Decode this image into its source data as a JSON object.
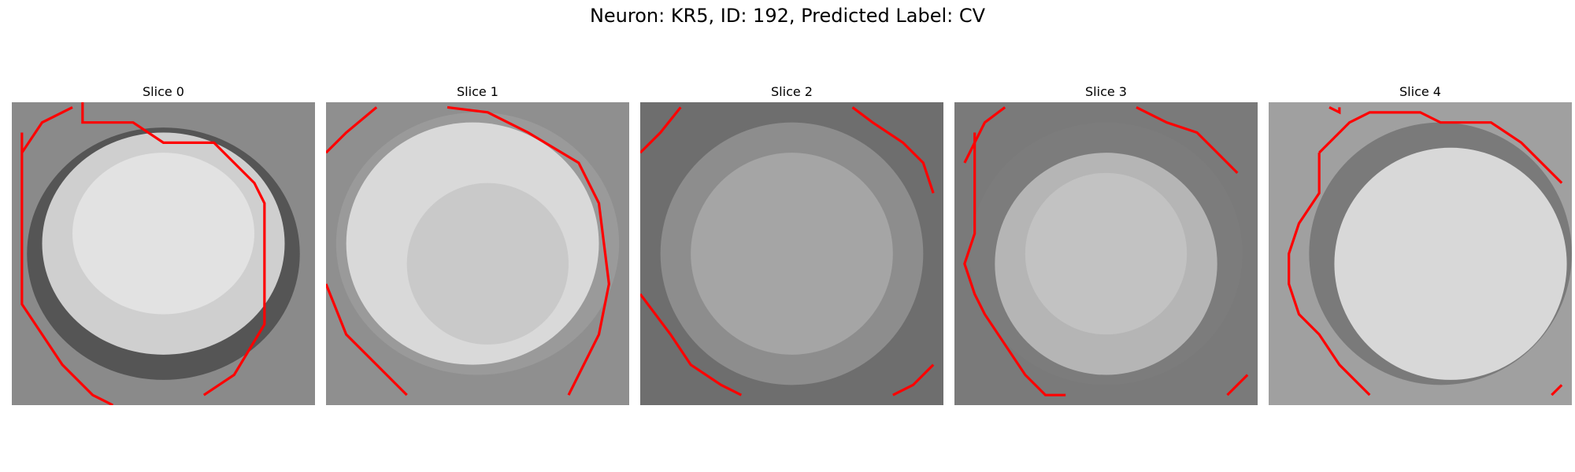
{
  "figure": {
    "title": "Neuron: KR5, ID: 192, Predicted Label: CV",
    "contour_color": "#ff0000",
    "colormap": "grayscale"
  },
  "slices": [
    {
      "title": "Slice 0"
    },
    {
      "title": "Slice 1"
    },
    {
      "title": "Slice 2"
    },
    {
      "title": "Slice 3"
    },
    {
      "title": "Slice 4"
    }
  ]
}
